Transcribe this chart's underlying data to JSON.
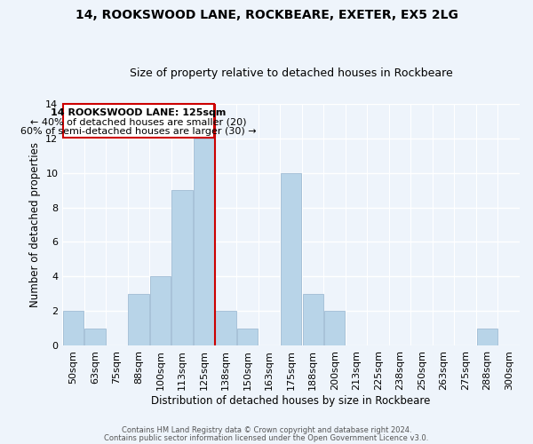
{
  "title": "14, ROOKSWOOD LANE, ROCKBEARE, EXETER, EX5 2LG",
  "subtitle": "Size of property relative to detached houses in Rockbeare",
  "xlabel": "Distribution of detached houses by size in Rockbeare",
  "ylabel": "Number of detached properties",
  "bar_color": "#b8d4e8",
  "bar_edge_color": "#a0bcd4",
  "background_color": "#eef4fb",
  "grid_color": "#ffffff",
  "bin_labels": [
    "50sqm",
    "63sqm",
    "75sqm",
    "88sqm",
    "100sqm",
    "113sqm",
    "125sqm",
    "138sqm",
    "150sqm",
    "163sqm",
    "175sqm",
    "188sqm",
    "200sqm",
    "213sqm",
    "225sqm",
    "238sqm",
    "250sqm",
    "263sqm",
    "275sqm",
    "288sqm",
    "300sqm"
  ],
  "bar_heights": [
    2,
    1,
    0,
    3,
    4,
    9,
    12,
    2,
    1,
    0,
    10,
    3,
    2,
    0,
    0,
    0,
    0,
    0,
    0,
    1,
    0
  ],
  "ylim": [
    0,
    14
  ],
  "yticks": [
    0,
    2,
    4,
    6,
    8,
    10,
    12,
    14
  ],
  "property_line_color": "#cc0000",
  "annotation_title": "14 ROOKSWOOD LANE: 125sqm",
  "annotation_line1": "← 40% of detached houses are smaller (20)",
  "annotation_line2": "60% of semi-detached houses are larger (30) →",
  "annotation_box_color": "#ffffff",
  "annotation_box_edge_color": "#cc0000",
  "footer1": "Contains HM Land Registry data © Crown copyright and database right 2024.",
  "footer2": "Contains public sector information licensed under the Open Government Licence v3.0."
}
